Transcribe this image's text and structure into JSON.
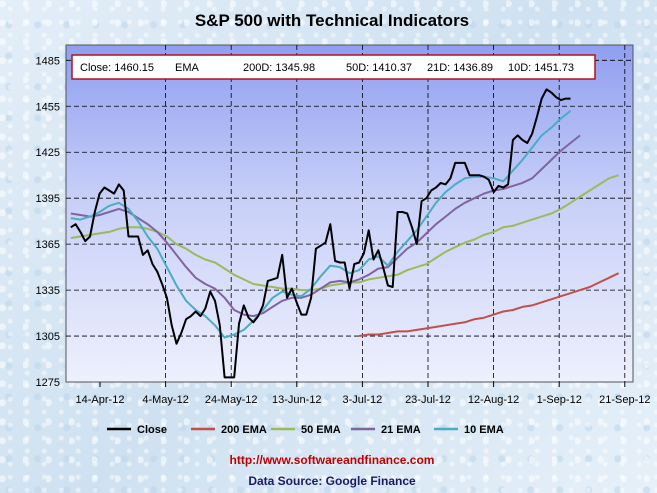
{
  "chart_data": {
    "type": "line",
    "title": "S&P 500 with Technical Indicators",
    "xlabel": "",
    "ylabel": "",
    "ylim": [
      1275,
      1495
    ],
    "yticks": [
      1275,
      1305,
      1335,
      1365,
      1395,
      1425,
      1455,
      1485
    ],
    "xticks": [
      "14-Apr-12",
      "4-May-12",
      "24-May-12",
      "13-Jun-12",
      "3-Jul-12",
      "23-Jul-12",
      "12-Aug-12",
      "1-Sep-12",
      "21-Sep-12"
    ],
    "x_range_days": [
      0,
      160
    ],
    "grid": true,
    "legend_position": "bottom",
    "info_box": {
      "close_label": "Close: 1460.15",
      "ema_label": "EMA",
      "d200_label": "200D: 1345.98",
      "d50_label": "50D: 1410.37",
      "d21_label": "21D: 1436.89",
      "d10_label": "10D: 1451.73"
    },
    "series": [
      {
        "name": "Close",
        "color": "#000000",
        "points": [
          [
            2,
            1376
          ],
          [
            4,
            1378
          ],
          [
            6,
            1373
          ],
          [
            8,
            1367
          ],
          [
            10,
            1370
          ],
          [
            12,
            1386
          ],
          [
            14,
            1398
          ],
          [
            16,
            1402
          ],
          [
            18,
            1400
          ],
          [
            20,
            1398
          ],
          [
            22,
            1404
          ],
          [
            24,
            1400
          ],
          [
            26,
            1370
          ],
          [
            28,
            1370
          ],
          [
            30,
            1370
          ],
          [
            32,
            1358
          ],
          [
            34,
            1361
          ],
          [
            36,
            1352
          ],
          [
            38,
            1347
          ],
          [
            40,
            1339
          ],
          [
            42,
            1330
          ],
          [
            44,
            1312
          ],
          [
            46,
            1300
          ],
          [
            48,
            1307
          ],
          [
            50,
            1316
          ],
          [
            52,
            1318
          ],
          [
            54,
            1321
          ],
          [
            56,
            1318
          ],
          [
            58,
            1323
          ],
          [
            60,
            1334
          ],
          [
            62,
            1328
          ],
          [
            64,
            1312
          ],
          [
            66,
            1278
          ],
          [
            68,
            1278
          ],
          [
            70,
            1278
          ],
          [
            72,
            1313
          ],
          [
            74,
            1325
          ],
          [
            76,
            1317
          ],
          [
            78,
            1314
          ],
          [
            80,
            1318
          ],
          [
            82,
            1325
          ],
          [
            84,
            1341
          ],
          [
            86,
            1342
          ],
          [
            88,
            1343
          ],
          [
            90,
            1358
          ],
          [
            92,
            1330
          ],
          [
            94,
            1336
          ],
          [
            96,
            1327
          ],
          [
            98,
            1319
          ],
          [
            100,
            1319
          ],
          [
            102,
            1330
          ],
          [
            104,
            1362
          ],
          [
            106,
            1364
          ],
          [
            108,
            1366
          ],
          [
            110,
            1378
          ],
          [
            112,
            1354
          ],
          [
            114,
            1353
          ],
          [
            116,
            1353
          ],
          [
            118,
            1336
          ],
          [
            120,
            1352
          ],
          [
            122,
            1353
          ],
          [
            124,
            1359
          ],
          [
            126,
            1374
          ],
          [
            128,
            1355
          ],
          [
            130,
            1361
          ],
          [
            132,
            1350
          ],
          [
            134,
            1338
          ],
          [
            136,
            1337
          ],
          [
            138,
            1386
          ],
          [
            140,
            1386
          ],
          [
            142,
            1385
          ],
          [
            144,
            1376
          ],
          [
            146,
            1365
          ],
          [
            148,
            1393
          ],
          [
            150,
            1395
          ],
          [
            152,
            1400
          ],
          [
            154,
            1402
          ],
          [
            156,
            1405
          ],
          [
            158,
            1404
          ],
          [
            160,
            1408
          ],
          [
            162,
            1418
          ],
          [
            164,
            1418
          ],
          [
            166,
            1418
          ],
          [
            168,
            1410
          ],
          [
            170,
            1410
          ],
          [
            172,
            1410
          ],
          [
            174,
            1409
          ],
          [
            176,
            1407
          ],
          [
            178,
            1399
          ],
          [
            180,
            1403
          ],
          [
            182,
            1402
          ],
          [
            184,
            1404
          ],
          [
            186,
            1433
          ],
          [
            188,
            1436
          ],
          [
            190,
            1433
          ],
          [
            192,
            1431
          ],
          [
            194,
            1437
          ],
          [
            196,
            1448
          ],
          [
            198,
            1460
          ],
          [
            200,
            1466
          ],
          [
            202,
            1464
          ],
          [
            204,
            1461
          ],
          [
            206,
            1459
          ],
          [
            208,
            1460
          ],
          [
            210,
            1460
          ]
        ]
      },
      {
        "name": "200 EMA",
        "color": "#c0504d",
        "points": [
          [
            122,
            1305
          ],
          [
            126,
            1306
          ],
          [
            130,
            1306
          ],
          [
            134,
            1307
          ],
          [
            138,
            1308
          ],
          [
            142,
            1308
          ],
          [
            146,
            1309
          ],
          [
            150,
            1310
          ],
          [
            154,
            1311
          ],
          [
            158,
            1312
          ],
          [
            162,
            1313
          ],
          [
            166,
            1314
          ],
          [
            170,
            1316
          ],
          [
            174,
            1317
          ],
          [
            178,
            1319
          ],
          [
            182,
            1321
          ],
          [
            186,
            1322
          ],
          [
            190,
            1324
          ],
          [
            194,
            1325
          ],
          [
            198,
            1327
          ],
          [
            202,
            1329
          ],
          [
            206,
            1331
          ],
          [
            210,
            1333
          ],
          [
            214,
            1335
          ],
          [
            218,
            1337
          ],
          [
            222,
            1340
          ],
          [
            226,
            1343
          ],
          [
            230,
            1346
          ]
        ]
      },
      {
        "name": "50 EMA",
        "color": "#9bbb59",
        "points": [
          [
            2,
            1369
          ],
          [
            6,
            1370
          ],
          [
            10,
            1371
          ],
          [
            14,
            1372
          ],
          [
            18,
            1373
          ],
          [
            22,
            1375
          ],
          [
            26,
            1376
          ],
          [
            30,
            1376
          ],
          [
            34,
            1375
          ],
          [
            38,
            1373
          ],
          [
            42,
            1370
          ],
          [
            46,
            1365
          ],
          [
            50,
            1362
          ],
          [
            54,
            1358
          ],
          [
            58,
            1355
          ],
          [
            62,
            1353
          ],
          [
            66,
            1349
          ],
          [
            70,
            1345
          ],
          [
            74,
            1342
          ],
          [
            78,
            1339
          ],
          [
            82,
            1338
          ],
          [
            86,
            1337
          ],
          [
            90,
            1336
          ],
          [
            94,
            1336
          ],
          [
            98,
            1335
          ],
          [
            102,
            1335
          ],
          [
            106,
            1336
          ],
          [
            110,
            1338
          ],
          [
            114,
            1339
          ],
          [
            118,
            1340
          ],
          [
            122,
            1340
          ],
          [
            126,
            1342
          ],
          [
            130,
            1343
          ],
          [
            134,
            1344
          ],
          [
            138,
            1345
          ],
          [
            142,
            1348
          ],
          [
            146,
            1350
          ],
          [
            150,
            1352
          ],
          [
            154,
            1356
          ],
          [
            158,
            1360
          ],
          [
            162,
            1363
          ],
          [
            166,
            1366
          ],
          [
            170,
            1368
          ],
          [
            174,
            1371
          ],
          [
            178,
            1373
          ],
          [
            182,
            1376
          ],
          [
            186,
            1377
          ],
          [
            190,
            1379
          ],
          [
            194,
            1381
          ],
          [
            198,
            1383
          ],
          [
            202,
            1385
          ],
          [
            206,
            1388
          ],
          [
            210,
            1392
          ],
          [
            214,
            1396
          ],
          [
            218,
            1400
          ],
          [
            222,
            1404
          ],
          [
            226,
            1408
          ],
          [
            230,
            1410
          ]
        ]
      },
      {
        "name": "21 EMA",
        "color": "#8064a2",
        "points": [
          [
            2,
            1385
          ],
          [
            6,
            1384
          ],
          [
            10,
            1383
          ],
          [
            14,
            1384
          ],
          [
            18,
            1386
          ],
          [
            22,
            1388
          ],
          [
            26,
            1386
          ],
          [
            30,
            1382
          ],
          [
            34,
            1378
          ],
          [
            38,
            1373
          ],
          [
            42,
            1366
          ],
          [
            46,
            1358
          ],
          [
            50,
            1350
          ],
          [
            54,
            1343
          ],
          [
            58,
            1339
          ],
          [
            62,
            1336
          ],
          [
            66,
            1330
          ],
          [
            70,
            1322
          ],
          [
            74,
            1319
          ],
          [
            78,
            1318
          ],
          [
            82,
            1320
          ],
          [
            86,
            1324
          ],
          [
            90,
            1328
          ],
          [
            94,
            1330
          ],
          [
            98,
            1330
          ],
          [
            102,
            1332
          ],
          [
            106,
            1336
          ],
          [
            110,
            1340
          ],
          [
            114,
            1341
          ],
          [
            118,
            1340
          ],
          [
            122,
            1342
          ],
          [
            126,
            1345
          ],
          [
            130,
            1349
          ],
          [
            134,
            1350
          ],
          [
            138,
            1356
          ],
          [
            142,
            1362
          ],
          [
            146,
            1366
          ],
          [
            150,
            1372
          ],
          [
            154,
            1378
          ],
          [
            158,
            1383
          ],
          [
            162,
            1388
          ],
          [
            166,
            1392
          ],
          [
            170,
            1395
          ],
          [
            174,
            1398
          ],
          [
            178,
            1400
          ],
          [
            182,
            1401
          ],
          [
            186,
            1403
          ],
          [
            190,
            1405
          ],
          [
            194,
            1408
          ],
          [
            198,
            1414
          ],
          [
            202,
            1420
          ],
          [
            206,
            1426
          ],
          [
            210,
            1431
          ],
          [
            214,
            1436
          ]
        ]
      },
      {
        "name": "10 EMA",
        "color": "#4bacc6",
        "points": [
          [
            2,
            1382
          ],
          [
            6,
            1381
          ],
          [
            10,
            1383
          ],
          [
            14,
            1386
          ],
          [
            18,
            1390
          ],
          [
            22,
            1392
          ],
          [
            26,
            1388
          ],
          [
            30,
            1380
          ],
          [
            34,
            1370
          ],
          [
            38,
            1362
          ],
          [
            42,
            1350
          ],
          [
            46,
            1338
          ],
          [
            50,
            1328
          ],
          [
            54,
            1322
          ],
          [
            58,
            1318
          ],
          [
            62,
            1312
          ],
          [
            66,
            1304
          ],
          [
            70,
            1306
          ],
          [
            74,
            1309
          ],
          [
            78,
            1315
          ],
          [
            82,
            1322
          ],
          [
            86,
            1330
          ],
          [
            90,
            1334
          ],
          [
            94,
            1332
          ],
          [
            98,
            1331
          ],
          [
            102,
            1336
          ],
          [
            106,
            1344
          ],
          [
            110,
            1351
          ],
          [
            114,
            1350
          ],
          [
            118,
            1346
          ],
          [
            122,
            1348
          ],
          [
            126,
            1355
          ],
          [
            130,
            1357
          ],
          [
            134,
            1351
          ],
          [
            138,
            1360
          ],
          [
            142,
            1367
          ],
          [
            146,
            1374
          ],
          [
            150,
            1383
          ],
          [
            154,
            1392
          ],
          [
            158,
            1399
          ],
          [
            162,
            1404
          ],
          [
            166,
            1408
          ],
          [
            170,
            1409
          ],
          [
            174,
            1409
          ],
          [
            178,
            1408
          ],
          [
            182,
            1406
          ],
          [
            186,
            1413
          ],
          [
            190,
            1420
          ],
          [
            194,
            1428
          ],
          [
            198,
            1436
          ],
          [
            202,
            1441
          ],
          [
            206,
            1447
          ],
          [
            210,
            1452
          ]
        ]
      }
    ],
    "x_domain": [
      0,
      236
    ]
  },
  "footer": {
    "url": "http://www.softwareandfinance.com",
    "source": "Data Source: Google Finance"
  }
}
